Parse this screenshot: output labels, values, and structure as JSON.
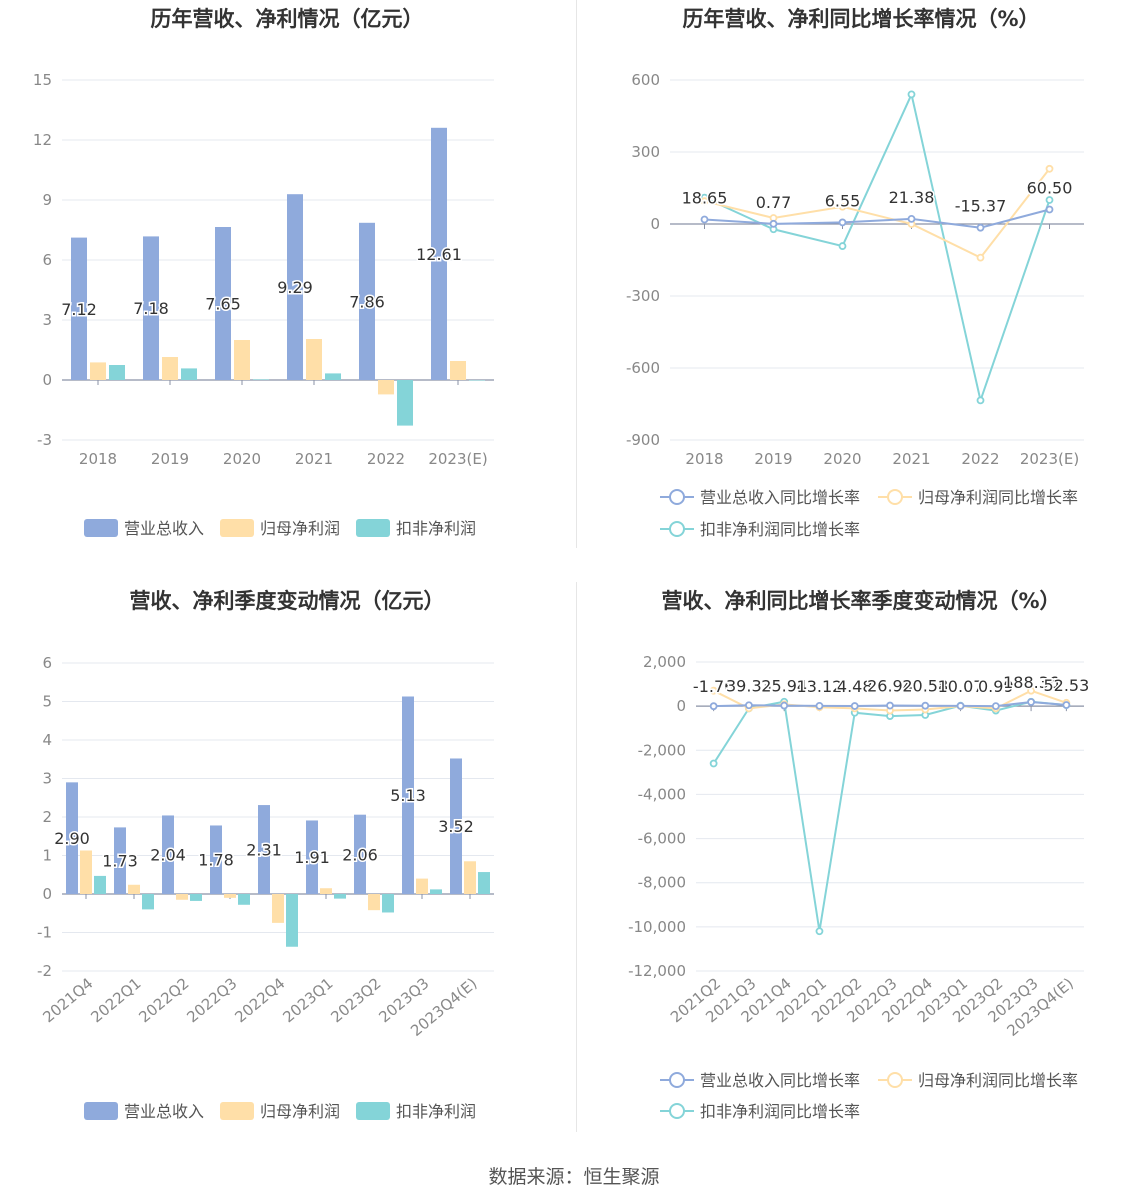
{
  "source": "数据来源：恒生聚源",
  "colors": {
    "revenue": "#8faadc",
    "net_profit": "#ffdfa8",
    "deducted_profit": "#84d4d8"
  },
  "chart_data": [
    {
      "type": "bar",
      "title": "历年营收、净利情况（亿元）",
      "categories": [
        "2018",
        "2019",
        "2020",
        "2021",
        "2022",
        "2023(E)"
      ],
      "ylim": [
        -3,
        15
      ],
      "yticks": [
        15,
        12,
        9,
        6,
        3,
        0,
        -3
      ],
      "series": [
        {
          "name": "营业总收入",
          "values": [
            7.12,
            7.18,
            7.65,
            9.29,
            7.86,
            12.61
          ],
          "labels": [
            "7.12",
            "7.18",
            "7.65",
            "9.29",
            "7.86",
            "12.61"
          ]
        },
        {
          "name": "归母净利润",
          "values": [
            0.88,
            1.15,
            2.0,
            2.05,
            -0.72,
            0.95
          ]
        },
        {
          "name": "扣非净利润",
          "values": [
            0.75,
            0.58,
            0.03,
            0.33,
            -2.28,
            0.0
          ]
        }
      ],
      "grid": true,
      "legend": "bottom"
    },
    {
      "type": "line",
      "title": "历年营收、净利同比增长率情况（%）",
      "categories": [
        "2018",
        "2019",
        "2020",
        "2021",
        "2022",
        "2023(E)"
      ],
      "ylim": [
        -900,
        600
      ],
      "yticks": [
        600,
        300,
        0,
        -300,
        -600,
        -900
      ],
      "series": [
        {
          "name": "营业总收入同比增长率",
          "values": [
            18.65,
            0.77,
            6.55,
            21.38,
            -15.37,
            60.5
          ],
          "labels": [
            "18.65",
            "0.77",
            "6.55",
            "21.38",
            "-15.37",
            "60.50"
          ]
        },
        {
          "name": "归母净利润同比增长率",
          "values": [
            95,
            25,
            72,
            0,
            -140,
            230
          ]
        },
        {
          "name": "扣非净利润同比增长率",
          "values": [
            110,
            -22,
            -92,
            540,
            -735,
            100
          ]
        }
      ],
      "grid": true,
      "legend": "bottom"
    },
    {
      "type": "bar",
      "title": "营收、净利季度变动情况（亿元）",
      "categories": [
        "2021Q4",
        "2022Q1",
        "2022Q2",
        "2022Q3",
        "2022Q4",
        "2023Q1",
        "2023Q2",
        "2023Q3",
        "2023Q4(E)"
      ],
      "ylim": [
        -2,
        6
      ],
      "yticks": [
        6,
        5,
        4,
        3,
        2,
        1,
        0,
        -1,
        -2
      ],
      "series": [
        {
          "name": "营业总收入",
          "values": [
            2.9,
            1.73,
            2.04,
            1.78,
            2.31,
            1.91,
            2.06,
            5.13,
            3.52
          ],
          "labels": [
            "2.90",
            "1.73",
            "2.04",
            "1.78",
            "2.31",
            "1.91",
            "2.06",
            "5.13",
            "3.52"
          ]
        },
        {
          "name": "归母净利润",
          "values": [
            1.13,
            0.24,
            -0.15,
            -0.1,
            -0.75,
            0.15,
            -0.42,
            0.4,
            0.85
          ]
        },
        {
          "name": "扣非净利润",
          "values": [
            0.47,
            -0.4,
            -0.18,
            -0.28,
            -1.37,
            -0.12,
            -0.48,
            0.12,
            0.57
          ]
        }
      ],
      "grid": true,
      "legend": "bottom"
    },
    {
      "type": "line",
      "title": "营收、净利同比增长率季度变动情况（%）",
      "categories": [
        "2021Q2",
        "2021Q3",
        "2021Q4",
        "2022Q1",
        "2022Q2",
        "2022Q3",
        "2022Q4",
        "2023Q1",
        "2023Q2",
        "2023Q3",
        "2023Q4(E)"
      ],
      "ylim": [
        -12000,
        2000
      ],
      "yticks": [
        2000,
        0,
        -2000,
        -4000,
        -6000,
        -8000,
        -10000,
        -12000
      ],
      "ytick_labels": [
        "2,000",
        "0",
        "-2,000",
        "-4,000",
        "-6,000",
        "-8,000",
        "-10,000",
        "-12,000"
      ],
      "series": [
        {
          "name": "营业总收入同比增长率",
          "values": [
            -1.76,
            39.33,
            25.94,
            13.12,
            4.48,
            26.94,
            20.58,
            10.07,
            0.99,
            188.36,
            52.53
          ],
          "labels": [
            "-1.76",
            "39.33",
            "25.94",
            "13.12",
            "4.48",
            "26.94",
            "20.58",
            "10.07",
            "0.99",
            "188.36",
            "52.53"
          ]
        },
        {
          "name": "归母净利润同比增长率",
          "values": [
            700,
            -100,
            80,
            -50,
            -100,
            -200,
            -150,
            0,
            -100,
            700,
            150
          ]
        },
        {
          "name": "扣非净利润同比增长率",
          "values": [
            -2600,
            -100,
            200,
            -10200,
            -300,
            -450,
            -400,
            20,
            -200,
            200,
            50
          ]
        }
      ],
      "grid": true,
      "legend": "bottom"
    }
  ]
}
